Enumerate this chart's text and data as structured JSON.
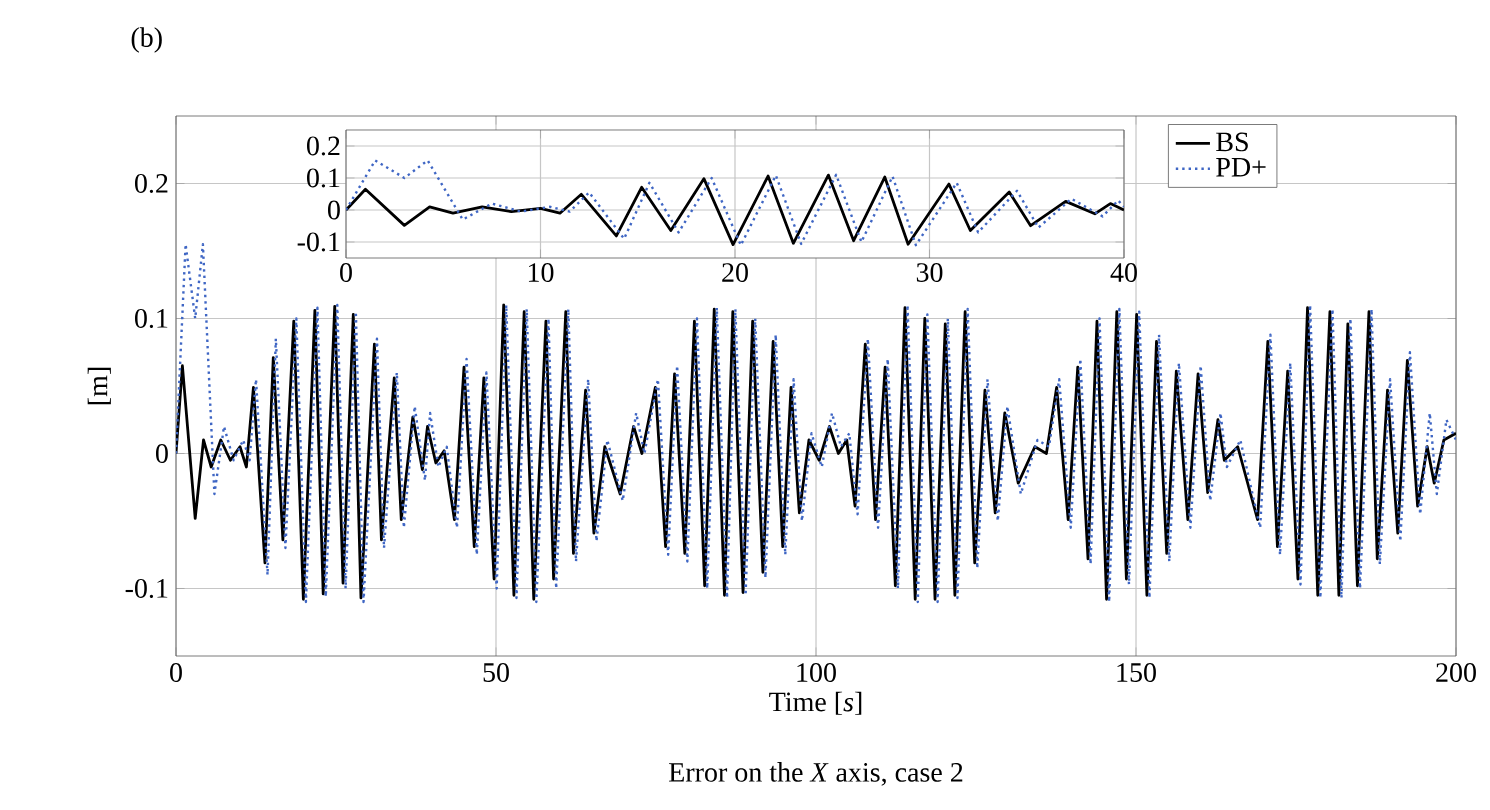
{
  "chart_data": [
    {
      "type": "line",
      "xlabel": "Time [*s*]",
      "ylabel": "[m]",
      "annotations": [
        "(b)",
        "Error on the *X* axis, case 2"
      ],
      "xlim": [
        0,
        200
      ],
      "xticks": [
        0,
        50,
        100,
        150,
        200
      ],
      "ylim": [
        -0.15,
        0.25
      ],
      "yticks": [
        -0.1,
        0,
        0.1,
        0.2
      ],
      "grid": true,
      "legend": "top right",
      "series": [
        {
          "name": "BS",
          "color": "#000000",
          "line_style": "solid",
          "x": [
            0,
            1,
            3,
            4.3,
            5.5,
            7,
            8.5,
            10,
            11,
            12.1,
            13.9,
            15.2,
            16.7,
            18.4,
            19.9,
            21.7,
            23.0,
            24.8,
            26.1,
            27.7,
            28.9,
            31.0,
            32.1,
            34.1,
            35.2,
            37.0,
            38.5,
            39.3,
            40.6,
            41.9,
            43.5,
            45.0,
            46.6,
            48.1,
            49.7,
            51.2,
            52.8,
            54.4,
            55.9,
            57.8,
            59.0,
            60.9,
            62.1,
            64.0,
            65.3,
            67,
            69.4,
            71.5,
            72.8,
            74.9,
            76.5,
            77.9,
            79.5,
            81.0,
            82.6,
            84.1,
            85.7,
            87.0,
            88.6,
            90.1,
            91.7,
            93.3,
            94.8,
            96.1,
            97.4,
            98.9,
            100.5,
            102.1,
            103.5,
            104.8,
            106.1,
            107.7,
            109.3,
            110.8,
            112.4,
            113.9,
            115.5,
            117.0,
            118.6,
            120.2,
            121.7,
            123.3,
            124.8,
            126.4,
            128.0,
            129.5,
            131.6,
            134.2,
            136,
            137.6,
            139.4,
            140.9,
            142.5,
            143.9,
            145.4,
            147.0,
            148.5,
            150.1,
            151.7,
            153.2,
            154.8,
            156.3,
            158.1,
            159.7,
            161.2,
            162.8,
            163.8,
            165.9,
            169.0,
            170.6,
            172.1,
            173.7,
            175.3,
            176.8,
            178.4,
            180.3,
            181.7,
            183.1,
            184.6,
            186.4,
            187.7,
            189.3,
            190.9,
            192.4,
            194.0,
            195.5,
            196.6,
            198.1,
            200
          ],
          "values": [
            0,
            0.065,
            -0.048,
            0.01,
            -0.01,
            0.01,
            -0.005,
            0.005,
            -0.01,
            0.049,
            -0.081,
            0.071,
            -0.064,
            0.098,
            -0.108,
            0.106,
            -0.104,
            0.109,
            -0.096,
            0.103,
            -0.107,
            0.081,
            -0.064,
            0.056,
            -0.049,
            0.027,
            -0.012,
            0.02,
            -0.007,
            0.002,
            -0.049,
            0.064,
            -0.069,
            0.056,
            -0.093,
            0.11,
            -0.105,
            0.105,
            -0.108,
            0.098,
            -0.093,
            0.105,
            -0.074,
            0.047,
            -0.059,
            0.005,
            -0.03,
            0.02,
            0,
            0.049,
            -0.069,
            0.059,
            -0.074,
            0.098,
            -0.098,
            0.107,
            -0.105,
            0.105,
            -0.103,
            0.098,
            -0.088,
            0.083,
            -0.069,
            0.049,
            -0.044,
            0.01,
            -0.005,
            0.02,
            0,
            0.01,
            -0.039,
            0.081,
            -0.049,
            0.064,
            -0.098,
            0.108,
            -0.108,
            0.1,
            -0.108,
            0.096,
            -0.105,
            0.105,
            -0.081,
            0.047,
            -0.044,
            0.03,
            -0.022,
            0.005,
            0,
            0.049,
            -0.049,
            0.064,
            -0.078,
            0.098,
            -0.108,
            0.105,
            -0.093,
            0.103,
            -0.105,
            0.083,
            -0.074,
            0.061,
            -0.049,
            0.059,
            -0.029,
            0.025,
            -0.005,
            0.005,
            -0.049,
            0.083,
            -0.069,
            0.061,
            -0.093,
            0.108,
            -0.105,
            0.105,
            -0.105,
            0.096,
            -0.098,
            0.105,
            -0.078,
            0.047,
            -0.059,
            0.069,
            -0.039,
            0.005,
            -0.022,
            0.01,
            0.015
          ]
        },
        {
          "name": "PD+",
          "color": "#3f66c4",
          "line_style": "dotted",
          "x": [
            0,
            1.5,
            3,
            4.2,
            6,
            7.5,
            9,
            10.5,
            11.5,
            12.5,
            14.3,
            15.6,
            17.1,
            18.8,
            20.3,
            22.1,
            23.4,
            25.2,
            26.5,
            28.1,
            29.3,
            31.4,
            32.5,
            34.5,
            35.6,
            37.3,
            38.9,
            39.7,
            41.0,
            42.3,
            43.9,
            45.4,
            47.0,
            48.5,
            50.1,
            51.6,
            53.2,
            54.8,
            56.3,
            58.2,
            59.4,
            61.3,
            62.5,
            64.4,
            65.7,
            67.4,
            69.8,
            71.9,
            73.2,
            75.3,
            76.9,
            78.3,
            79.9,
            81.4,
            83.0,
            84.5,
            86.1,
            87.4,
            89.0,
            90.5,
            92.1,
            93.7,
            95.2,
            96.5,
            97.8,
            99.3,
            100.9,
            102.5,
            103.9,
            105.2,
            106.5,
            108.1,
            109.7,
            111.2,
            112.8,
            114.3,
            115.9,
            117.4,
            119.0,
            120.6,
            122.1,
            123.7,
            125.2,
            126.8,
            128.4,
            129.9,
            132.0,
            134.6,
            136.4,
            138.0,
            139.8,
            141.3,
            142.9,
            144.3,
            145.8,
            147.4,
            148.9,
            150.5,
            152.1,
            153.6,
            155.2,
            156.7,
            158.5,
            160.1,
            161.6,
            163.2,
            164.2,
            166.3,
            169.4,
            171.0,
            172.5,
            174.1,
            175.7,
            177.2,
            178.8,
            180.7,
            182.1,
            183.5,
            185.0,
            186.8,
            188.1,
            189.7,
            191.3,
            192.8,
            194.4,
            195.9,
            197.0,
            198.5,
            200
          ],
          "values": [
            0,
            0.155,
            0.1,
            0.155,
            -0.03,
            0.02,
            -0.005,
            0.01,
            -0.005,
            0.055,
            -0.09,
            0.085,
            -0.07,
            0.1,
            -0.11,
            0.108,
            -0.106,
            0.11,
            -0.1,
            0.105,
            -0.11,
            0.085,
            -0.07,
            0.06,
            -0.055,
            0.035,
            -0.02,
            0.03,
            -0.01,
            0.005,
            -0.055,
            0.07,
            -0.075,
            0.06,
            -0.1,
            0.11,
            -0.107,
            0.107,
            -0.11,
            0.1,
            -0.1,
            0.107,
            -0.08,
            0.055,
            -0.065,
            0.01,
            -0.035,
            0.03,
            0,
            0.055,
            -0.075,
            0.065,
            -0.08,
            0.1,
            -0.1,
            0.108,
            -0.107,
            0.107,
            -0.105,
            0.1,
            -0.092,
            0.088,
            -0.075,
            0.055,
            -0.05,
            0.015,
            -0.01,
            0.03,
            0.005,
            0.015,
            -0.045,
            0.085,
            -0.055,
            0.07,
            -0.1,
            0.11,
            -0.11,
            0.103,
            -0.11,
            0.1,
            -0.107,
            0.107,
            -0.085,
            0.055,
            -0.05,
            0.035,
            -0.03,
            0.01,
            0.005,
            0.055,
            -0.055,
            0.07,
            -0.082,
            0.1,
            -0.11,
            0.107,
            -0.097,
            0.105,
            -0.107,
            0.088,
            -0.08,
            0.067,
            -0.055,
            0.065,
            -0.035,
            0.03,
            -0.01,
            0.01,
            -0.055,
            0.088,
            -0.075,
            0.067,
            -0.097,
            0.11,
            -0.107,
            0.107,
            -0.107,
            0.1,
            -0.1,
            0.107,
            -0.082,
            0.055,
            -0.065,
            0.075,
            -0.045,
            0.03,
            -0.03,
            0.025,
            0.01
          ]
        }
      ]
    },
    {
      "type": "line",
      "xlim": [
        0,
        40
      ],
      "xticks": [
        0,
        10,
        20,
        30,
        40
      ],
      "ylim": [
        -0.15,
        0.25
      ],
      "yticks": [
        -0.1,
        0,
        0.1,
        0.2
      ],
      "grid": true,
      "series": [
        {
          "color": "#000000",
          "line_style": "solid",
          "x": [
            0,
            1,
            3,
            4.3,
            5.5,
            7,
            8.5,
            10,
            11,
            12.1,
            13.9,
            15.2,
            16.7,
            18.4,
            19.9,
            21.7,
            23.0,
            24.8,
            26.1,
            27.7,
            28.9,
            31.0,
            32.1,
            34.1,
            35.2,
            37.0,
            38.5,
            39.3,
            40
          ],
          "values": [
            0,
            0.065,
            -0.048,
            0.01,
            -0.01,
            0.01,
            -0.005,
            0.005,
            -0.01,
            0.049,
            -0.081,
            0.071,
            -0.064,
            0.098,
            -0.108,
            0.106,
            -0.104,
            0.109,
            -0.096,
            0.103,
            -0.107,
            0.081,
            -0.064,
            0.056,
            -0.049,
            0.027,
            -0.012,
            0.02,
            0
          ]
        },
        {
          "color": "#3f66c4",
          "line_style": "dotted",
          "x": [
            0,
            1.5,
            3,
            4.2,
            6,
            7.5,
            9,
            10.5,
            11.5,
            12.5,
            14.3,
            15.6,
            17.1,
            18.8,
            20.3,
            22.1,
            23.4,
            25.2,
            26.5,
            28.1,
            29.3,
            31.4,
            32.5,
            34.5,
            35.6,
            37.3,
            38.9,
            39.7,
            40
          ],
          "values": [
            0,
            0.155,
            0.1,
            0.155,
            -0.03,
            0.02,
            -0.005,
            0.01,
            -0.005,
            0.055,
            -0.09,
            0.085,
            -0.07,
            0.1,
            -0.11,
            0.108,
            -0.106,
            0.11,
            -0.1,
            0.105,
            -0.11,
            0.085,
            -0.07,
            0.06,
            -0.055,
            0.035,
            -0.02,
            0.03,
            0.01
          ]
        }
      ]
    }
  ]
}
